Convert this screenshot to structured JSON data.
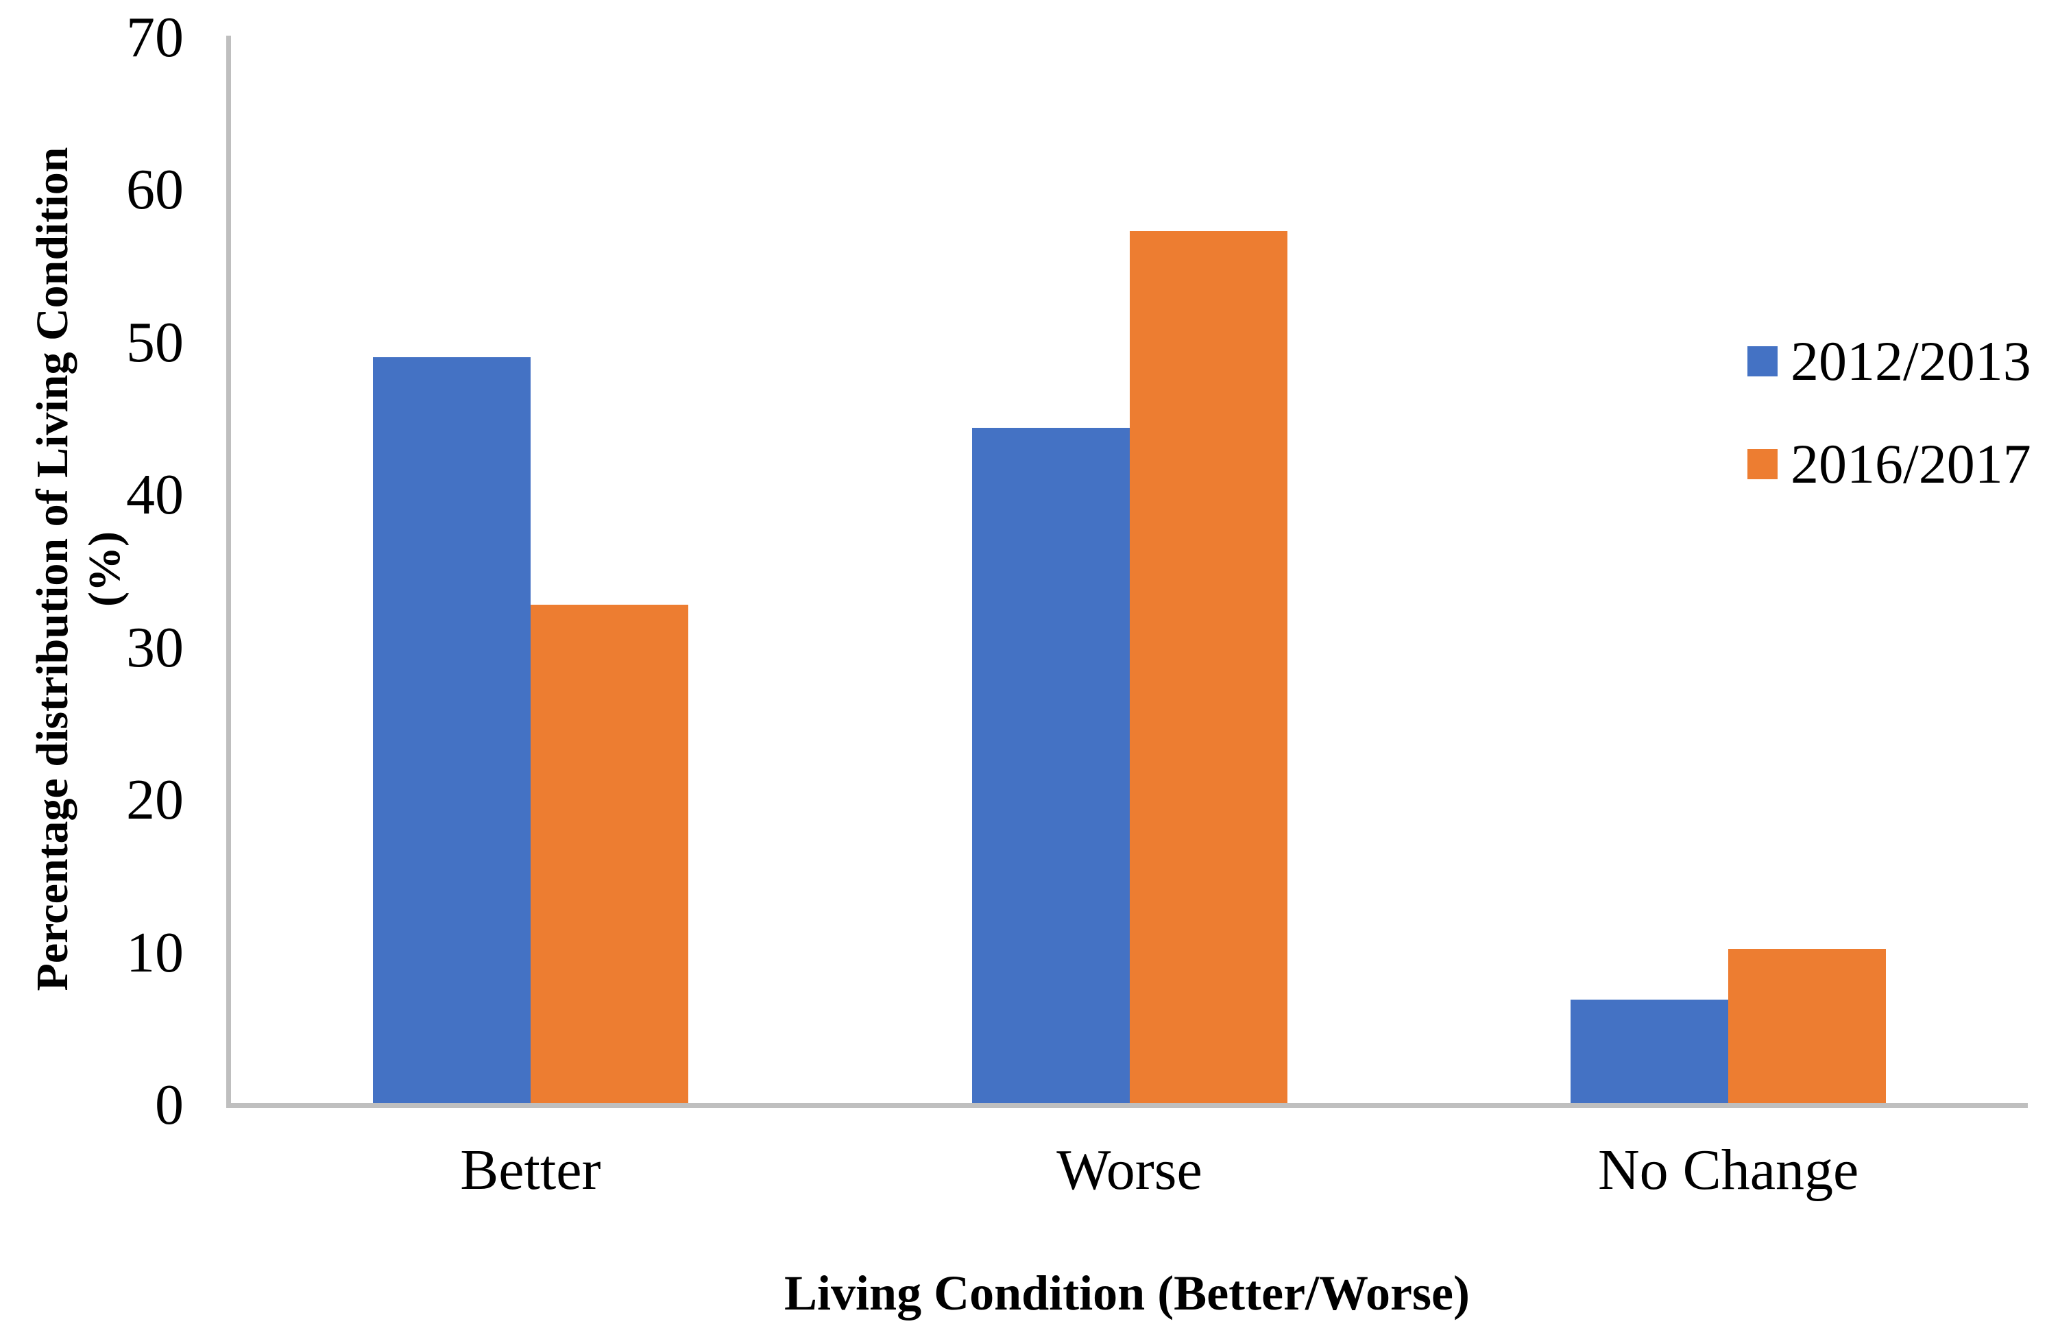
{
  "figure": {
    "background": "#FFFFFF"
  },
  "chart_data": {
    "type": "bar",
    "title": "",
    "categories": [
      "Better",
      "Worse",
      "No Change"
    ],
    "series": [
      {
        "name": "2012/2013",
        "color": "#4472C4",
        "values": [
          48.9,
          44.3,
          6.8
        ]
      },
      {
        "name": "2016/2017",
        "color": "#ED7D31",
        "values": [
          32.7,
          57.2,
          10.1
        ]
      }
    ],
    "xlabel": "Living Condition (Better/Worse)",
    "ylabel": "Percentage distribution of Living Condition (%)",
    "ylabel_lines": [
      "Percentage distribution of Living Condition",
      "(%)"
    ],
    "ylim": [
      0,
      70
    ],
    "yticks": [
      0,
      10,
      20,
      30,
      40,
      50,
      60,
      70
    ],
    "grid": false,
    "legend_position": "right",
    "axis_color": "#BFBFBF",
    "text_color": "#000000"
  }
}
